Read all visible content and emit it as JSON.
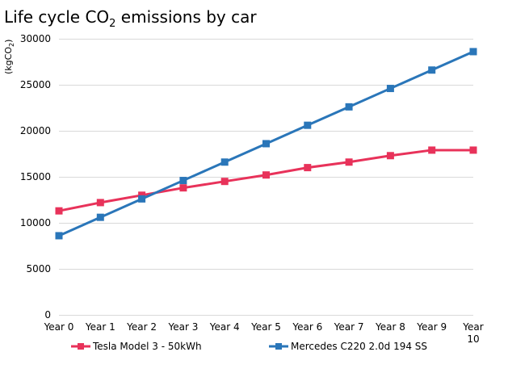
{
  "chart_data": {
    "type": "line",
    "title": {
      "prefix": "Life cycle CO",
      "subscript": "2",
      "suffix": " emissions by car"
    },
    "ylabel": {
      "prefix": "(kgCO",
      "subscript": "2",
      "suffix": ")"
    },
    "xlabel": "",
    "categories": [
      "Year 0",
      "Year 1",
      "Year 2",
      "Year 3",
      "Year 4",
      "Year 5",
      "Year 6",
      "Year 7",
      "Year 8",
      "Year 9",
      "Year 10"
    ],
    "ylim": [
      0,
      30000
    ],
    "yticks": [
      "0",
      "5000",
      "10000",
      "15000",
      "20000",
      "25000",
      "30000"
    ],
    "grid": true,
    "legend_position": "bottom",
    "series": [
      {
        "name": "Tesla Model 3 - 50kWh",
        "color": "#e8325a",
        "marker": "square",
        "values": [
          11300,
          12200,
          13000,
          13800,
          14500,
          15200,
          16000,
          16600,
          17300,
          17900,
          17900
        ]
      },
      {
        "name": "Mercedes C220 2.0d 194 SS",
        "color": "#2a76b9",
        "marker": "square",
        "values": [
          8600,
          10600,
          12600,
          14600,
          16600,
          18600,
          20600,
          22600,
          24600,
          26600,
          28600
        ]
      }
    ]
  }
}
